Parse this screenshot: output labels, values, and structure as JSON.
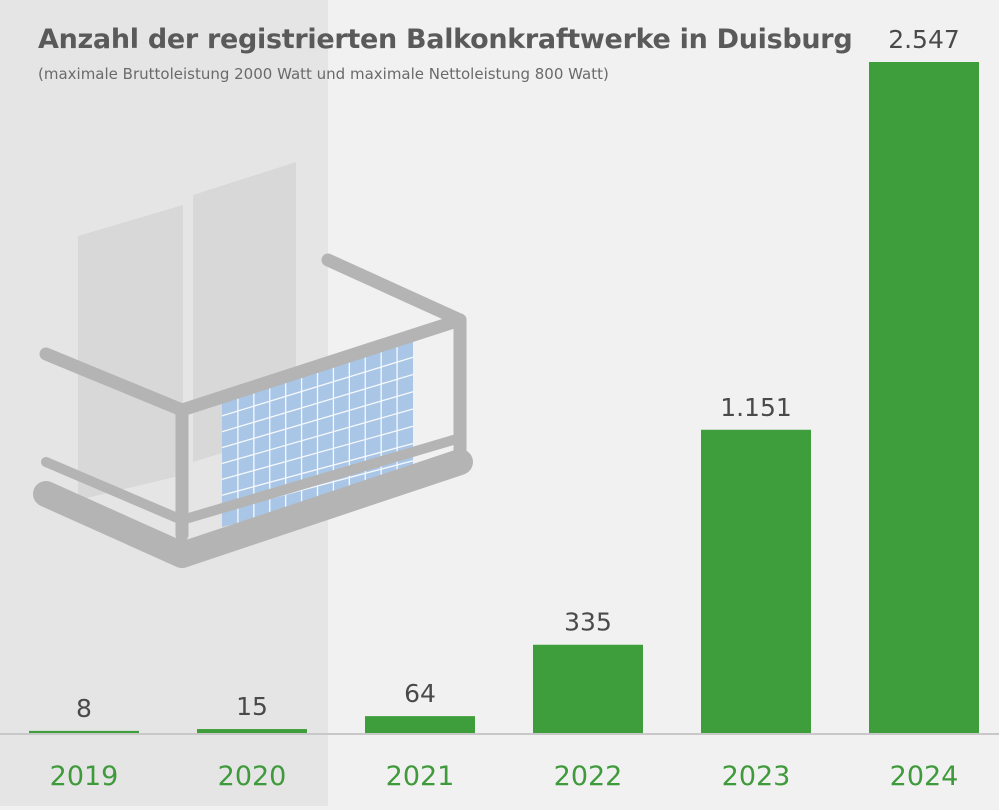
{
  "chart_data": {
    "type": "bar",
    "title": "Anzahl der registrierten Balkonkraftwerke in Duisburg",
    "subtitle": "(maximale Bruttoleistung 2000 Watt und maximale Nettoleistung 800 Watt)",
    "categories": [
      "2019",
      "2020",
      "2021",
      "2022",
      "2023",
      "2024"
    ],
    "values": [
      8,
      15,
      64,
      335,
      1151,
      2547
    ],
    "value_labels": [
      "8",
      "15",
      "64",
      "335",
      "1.151",
      "2.547"
    ],
    "xlabel": "",
    "ylabel": "",
    "ylim": [
      0,
      2547
    ],
    "grid": false,
    "bar_color": "#3f9e3c",
    "label_color": "#3f9a3c",
    "baseline_color": "#c8c8c8"
  },
  "illustration": {
    "name": "balcony-with-solar-panel",
    "frame_color": "#b4b4b4",
    "panel_color": "#a9c6e6",
    "panel_grid_color": "#ffffff"
  }
}
